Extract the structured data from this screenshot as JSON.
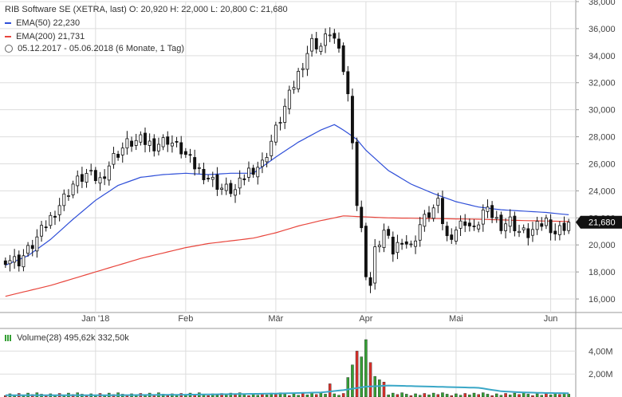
{
  "header": {
    "title_line": "RIB Software SE (XETRA, last)  O: 20,920  H: 22,000  L: 20,800  C: 21,680",
    "ema50_label": "EMA(50)  22,230",
    "ema200_label": "EMA(200)  21,731",
    "period_label": "05.12.2017 - 05.06.2018     (6 Monate, 1 Tag)",
    "volume_label": "Volume(28)  495,62k  332,50k"
  },
  "colors": {
    "up": "#3a8a3a",
    "down": "#111111",
    "ema50": "#2f4fd8",
    "ema200": "#e8453c",
    "volume_up": "#35a035",
    "volume_down": "#d9302a",
    "volume_avg": "#3aa7c7",
    "grid": "#dddddd"
  },
  "chart_data": [
    {
      "type": "candlestick",
      "ylim": [
        15000,
        38000
      ],
      "y_ticks": [
        "16,000",
        "18,000",
        "20,000",
        "22,000",
        "24,000",
        "26,000",
        "28,000",
        "30,000",
        "32,000",
        "34,000",
        "36,000",
        "38,000"
      ],
      "last_price_label": "21,680",
      "x_labels": [
        "Jan '18",
        "Feb",
        "Mär",
        "Apr",
        "Mai",
        "Jun"
      ],
      "x_label_positions": [
        20,
        40,
        60,
        80,
        100,
        121
      ],
      "n_sessions": 126,
      "close_anchors": [
        [
          0,
          19000
        ],
        [
          3,
          18800
        ],
        [
          6,
          20000
        ],
        [
          9,
          21500
        ],
        [
          12,
          23000
        ],
        [
          15,
          24500
        ],
        [
          18,
          25200
        ],
        [
          21,
          24800
        ],
        [
          24,
          26500
        ],
        [
          27,
          27500
        ],
        [
          30,
          27700
        ],
        [
          33,
          27400
        ],
        [
          36,
          27800
        ],
        [
          39,
          27000
        ],
        [
          42,
          25800
        ],
        [
          45,
          25000
        ],
        [
          48,
          24200
        ],
        [
          51,
          24000
        ],
        [
          54,
          25500
        ],
        [
          57,
          26000
        ],
        [
          60,
          28500
        ],
        [
          63,
          31000
        ],
        [
          66,
          33500
        ],
        [
          68,
          35000
        ],
        [
          70,
          34700
        ],
        [
          72,
          35800
        ],
        [
          73,
          35200
        ],
        [
          75,
          33000
        ],
        [
          76,
          31000
        ],
        [
          77,
          28000
        ],
        [
          78,
          23000
        ],
        [
          79,
          21000
        ],
        [
          80,
          18000
        ],
        [
          81,
          17000
        ],
        [
          82,
          19500
        ],
        [
          84,
          21000
        ],
        [
          86,
          19500
        ],
        [
          88,
          20500
        ],
        [
          90,
          19800
        ],
        [
          92,
          21500
        ],
        [
          94,
          22300
        ],
        [
          96,
          23000
        ],
        [
          98,
          20500
        ],
        [
          100,
          21200
        ],
        [
          102,
          21800
        ],
        [
          104,
          21000
        ],
        [
          106,
          22500
        ],
        [
          108,
          22200
        ],
        [
          110,
          21500
        ],
        [
          112,
          21800
        ],
        [
          114,
          21000
        ],
        [
          116,
          20800
        ],
        [
          118,
          21300
        ],
        [
          120,
          21800
        ],
        [
          122,
          20900
        ],
        [
          125,
          21680
        ]
      ],
      "ema50_anchors": [
        [
          0,
          18500
        ],
        [
          5,
          19200
        ],
        [
          10,
          20400
        ],
        [
          15,
          21900
        ],
        [
          20,
          23300
        ],
        [
          25,
          24400
        ],
        [
          30,
          25000
        ],
        [
          35,
          25200
        ],
        [
          40,
          25300
        ],
        [
          45,
          25200
        ],
        [
          50,
          25300
        ],
        [
          55,
          25300
        ],
        [
          60,
          26500
        ],
        [
          65,
          27600
        ],
        [
          70,
          28500
        ],
        [
          73,
          28900
        ],
        [
          75,
          28500
        ],
        [
          78,
          27800
        ],
        [
          80,
          27000
        ],
        [
          85,
          25500
        ],
        [
          90,
          24500
        ],
        [
          95,
          23800
        ],
        [
          100,
          23200
        ],
        [
          105,
          22800
        ],
        [
          110,
          22600
        ],
        [
          115,
          22500
        ],
        [
          120,
          22400
        ],
        [
          125,
          22230
        ]
      ],
      "ema200_anchors": [
        [
          0,
          16200
        ],
        [
          10,
          17000
        ],
        [
          20,
          18000
        ],
        [
          30,
          19000
        ],
        [
          35,
          19400
        ],
        [
          40,
          19800
        ],
        [
          45,
          20100
        ],
        [
          50,
          20300
        ],
        [
          55,
          20500
        ],
        [
          60,
          20900
        ],
        [
          65,
          21400
        ],
        [
          70,
          21800
        ],
        [
          73,
          22000
        ],
        [
          75,
          22150
        ],
        [
          78,
          22100
        ],
        [
          85,
          22000
        ],
        [
          95,
          21950
        ],
        [
          105,
          21900
        ],
        [
          115,
          21800
        ],
        [
          125,
          21731
        ]
      ]
    },
    {
      "type": "bar",
      "name": "Volume(28)",
      "ylim": [
        0,
        5000000
      ],
      "y_ticks": [
        "2,00M",
        "4,00M"
      ],
      "spikes": [
        [
          72,
          1150000
        ],
        [
          76,
          1700000
        ],
        [
          77,
          2800000
        ],
        [
          78,
          4000000
        ],
        [
          79,
          3500000
        ],
        [
          80,
          5000000
        ],
        [
          81,
          3000000
        ],
        [
          82,
          1800000
        ],
        [
          83,
          1500000
        ],
        [
          84,
          1300000
        ]
      ],
      "base_volume": 250000,
      "avg_anchors": [
        [
          0,
          150000
        ],
        [
          20,
          150000
        ],
        [
          40,
          200000
        ],
        [
          60,
          300000
        ],
        [
          70,
          400000
        ],
        [
          75,
          600000
        ],
        [
          80,
          900000
        ],
        [
          85,
          1000000
        ],
        [
          90,
          950000
        ],
        [
          95,
          900000
        ],
        [
          100,
          850000
        ],
        [
          105,
          800000
        ],
        [
          110,
          500000
        ],
        [
          115,
          400000
        ],
        [
          120,
          350000
        ],
        [
          125,
          332500
        ]
      ]
    }
  ]
}
